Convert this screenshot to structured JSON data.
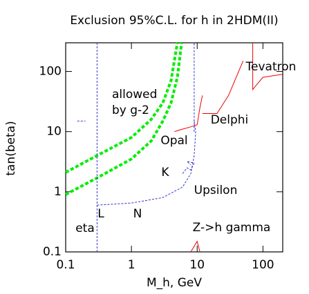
{
  "chart_data": {
    "type": "line",
    "title": "Exclusion 95%C.L.  for h  in 2HDM(II)",
    "x_label": "M_h,  GeV",
    "y_label": "tan(beta)",
    "x_scale": "log",
    "y_scale": "log",
    "xlim": [
      0.1,
      200
    ],
    "ylim": [
      0.1,
      300
    ],
    "xticks": [
      0.1,
      1,
      10,
      100
    ],
    "yticks": [
      0.1,
      1,
      10,
      100
    ],
    "annotations": [
      "allowed",
      "by g-2",
      "Tevatron",
      "Delphi",
      "Opal",
      "K",
      "Upsilon",
      "L",
      "N",
      "eta",
      "Z->h gamma"
    ],
    "series": [
      {
        "color": "#00ee00",
        "dashed": true,
        "width": 4,
        "x": [
          0.1,
          0.3,
          1,
          2,
          3,
          4,
          5
        ],
        "values": [
          2.1,
          4,
          8,
          16,
          30,
          70,
          300
        ]
      },
      {
        "color": "#00ee00",
        "dashed": true,
        "width": 4,
        "x": [
          0.1,
          0.3,
          1,
          2,
          3,
          4,
          5,
          5.8
        ],
        "values": [
          0.9,
          1.7,
          3.5,
          7,
          15,
          30,
          80,
          300
        ]
      },
      {
        "color": "#3333cc",
        "dashed": true,
        "width": 1,
        "x": [
          0.3,
          0.3
        ],
        "values": [
          0.1,
          300
        ]
      },
      {
        "color": "#3333cc",
        "dashed": true,
        "width": 1,
        "x": [
          9,
          9
        ],
        "values": [
          10,
          300
        ]
      },
      {
        "color": "#3333cc",
        "dashed": true,
        "width": 1,
        "x": [
          0.3,
          1,
          3,
          6,
          8,
          9,
          9.5,
          9
        ],
        "values": [
          0.6,
          0.65,
          0.8,
          1.2,
          2,
          4,
          10,
          15
        ]
      },
      {
        "color": "#3333cc",
        "dashed": true,
        "width": 1,
        "x": [
          6,
          7,
          8,
          9,
          7,
          8
        ],
        "values": [
          2,
          2.5,
          2.3,
          3,
          3.2,
          2.8
        ]
      },
      {
        "color": "#3333cc",
        "dashed": true,
        "width": 1,
        "x": [
          0.15,
          0.2
        ],
        "values": [
          15,
          15
        ]
      },
      {
        "color": "#ee0000",
        "dashed": false,
        "width": 1,
        "x": [
          70,
          70,
          80,
          100,
          200
        ],
        "values": [
          300,
          50,
          60,
          80,
          90
        ]
      },
      {
        "color": "#ee0000",
        "dashed": false,
        "width": 1,
        "x": [
          12,
          20,
          30,
          50
        ],
        "values": [
          20,
          20,
          40,
          150
        ]
      },
      {
        "color": "#ee0000",
        "dashed": false,
        "width": 1,
        "x": [
          4.5,
          6,
          8,
          10,
          11,
          12
        ],
        "values": [
          10,
          11,
          12,
          13,
          25,
          40
        ]
      },
      {
        "color": "#ee0000",
        "dashed": false,
        "width": 1,
        "x": [
          8,
          10,
          11
        ],
        "values": [
          0.1,
          0.15,
          0.1
        ]
      }
    ]
  }
}
